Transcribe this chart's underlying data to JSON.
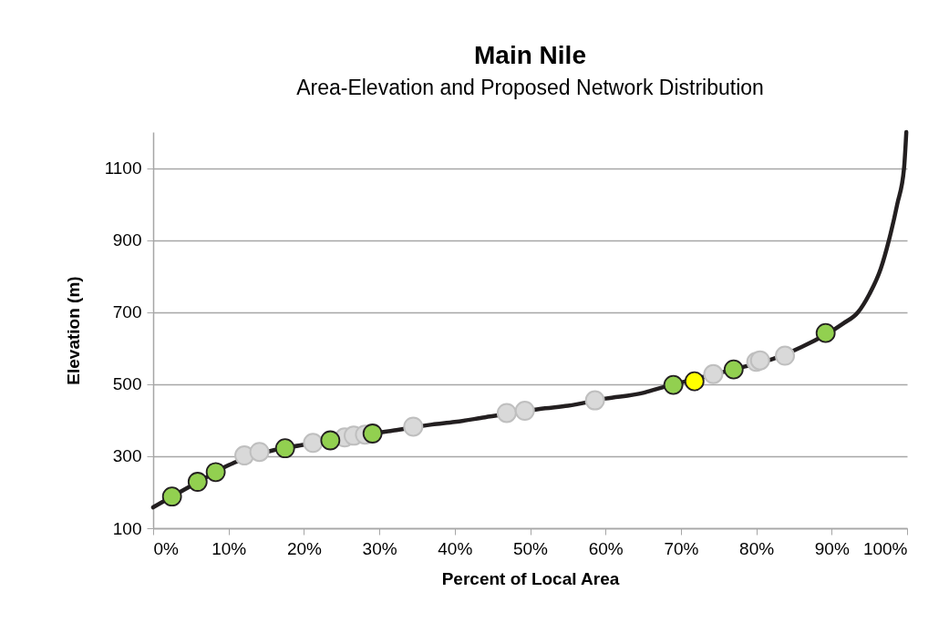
{
  "chart_data": {
    "type": "line",
    "title": "Main Nile",
    "subtitle": "Area-Elevation and Proposed Network Distribution",
    "xlabel": "Percent of Local Area",
    "ylabel": "Elevation (m)",
    "xlim": [
      0,
      100
    ],
    "xticks": [
      {
        "value": 0,
        "label": "0%"
      },
      {
        "value": 10,
        "label": "10%"
      },
      {
        "value": 20,
        "label": "20%"
      },
      {
        "value": 30,
        "label": "30%"
      },
      {
        "value": 40,
        "label": "40%"
      },
      {
        "value": 50,
        "label": "50%"
      },
      {
        "value": 60,
        "label": "60%"
      },
      {
        "value": 70,
        "label": "70%"
      },
      {
        "value": 80,
        "label": "80%"
      },
      {
        "value": 90,
        "label": "90%"
      },
      {
        "value": 100,
        "label": "100%"
      }
    ],
    "ylim": [
      100,
      1200
    ],
    "yticks": [
      100,
      300,
      500,
      700,
      900,
      1100
    ],
    "grid": "y",
    "marker": "circle",
    "series": [
      {
        "color": "#231f20",
        "marker": "none",
        "x": [
          0,
          1,
          4.2,
          7.1,
          10,
          16,
          19.5,
          32,
          37,
          40,
          44,
          52,
          55,
          60,
          65,
          67,
          78.5,
          82.2,
          86,
          91.5,
          93.5,
          95,
          96.5,
          97.6,
          98.7,
          99.6,
          99.9
        ],
        "values": [
          158,
          170,
          208,
          242,
          275,
          317,
          330,
          372,
          388,
          395,
          408,
          433,
          440,
          460,
          476,
          488,
          549,
          570,
          603,
          668,
          700,
          750,
          820,
          900,
          1000,
          1100,
          1200
        ]
      },
      {
        "type": "scatter",
        "color": "#d9d9d9",
        "x": [
          12.1,
          14.1,
          21.2,
          25.4,
          26.6,
          28.1,
          34.5,
          46.9,
          49.3,
          58.6,
          74.3,
          80.0,
          80.5,
          83.8
        ],
        "values": [
          302,
          312,
          337,
          352,
          357,
          360,
          382,
          420,
          426,
          455,
          528,
          562,
          566,
          579
        ]
      },
      {
        "type": "scatter",
        "color": "#92d050",
        "x": [
          2.5,
          5.9,
          8.3,
          17.5,
          23.5,
          29.1,
          69.0,
          77.0,
          89.2
        ],
        "values": [
          188,
          229,
          256,
          322,
          344,
          363,
          498,
          541,
          642
        ]
      },
      {
        "type": "scatter",
        "color": "#ffff00",
        "x": [
          71.8
        ],
        "values": [
          508
        ]
      }
    ]
  }
}
